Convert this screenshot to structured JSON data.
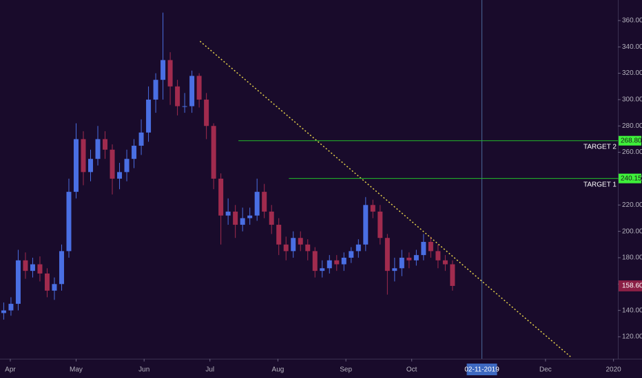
{
  "chart_data": {
    "type": "candlestick",
    "up_color": "#4a6fe3",
    "down_color": "#a12b4e",
    "x": [
      -3,
      0.3,
      3.6,
      6.9,
      10.2,
      13.5,
      16.8,
      20.1,
      23.4,
      26.7,
      30,
      33.3,
      36.6,
      39.9,
      43.2,
      46.5,
      49.8,
      53.1,
      56.4,
      59.7,
      63,
      66.3,
      69.6,
      72.9,
      76.2,
      79.5,
      82.8,
      86.1,
      89.4,
      92.7,
      96,
      99.3,
      102.6,
      105.9,
      109.2,
      112.5,
      115.8,
      119.1,
      122.4,
      125.7,
      129,
      132.3,
      135.6,
      138.9,
      142.2,
      145.5,
      148.8,
      152.1,
      155.4,
      158.7,
      162,
      165.3,
      168.6,
      171.9,
      175.2,
      178.5,
      181.8,
      185.1,
      188.4,
      191.7,
      195,
      198.3,
      201.6
    ],
    "open": [
      138,
      140,
      145,
      178,
      170,
      175,
      168,
      155,
      160,
      185,
      230,
      270,
      245,
      255,
      270,
      262,
      240,
      245,
      255,
      265,
      275,
      300,
      315,
      330,
      310,
      295,
      295,
      318,
      300,
      280,
      240,
      212,
      215,
      205,
      210,
      212,
      230,
      215,
      205,
      190,
      185,
      195,
      190,
      185,
      170,
      172,
      178,
      175,
      180,
      185,
      190,
      220,
      215,
      195,
      170,
      172,
      180,
      178,
      182,
      192,
      185,
      178,
      175
    ],
    "high": [
      146,
      150,
      186,
      184,
      180,
      181,
      172,
      165,
      190,
      240,
      282,
      276,
      262,
      280,
      276,
      266,
      252,
      262,
      270,
      285,
      310,
      320,
      366,
      336,
      315,
      305,
      322,
      320,
      305,
      282,
      244,
      225,
      220,
      218,
      218,
      240,
      236,
      220,
      210,
      196,
      200,
      200,
      194,
      188,
      178,
      182,
      182,
      184,
      188,
      194,
      226,
      224,
      220,
      198,
      180,
      186,
      184,
      186,
      198,
      196,
      190,
      182,
      178
    ],
    "low": [
      133,
      136,
      140,
      164,
      165,
      162,
      150,
      148,
      155,
      180,
      225,
      235,
      238,
      250,
      255,
      228,
      232,
      238,
      248,
      258,
      268,
      290,
      300,
      296,
      288,
      290,
      290,
      294,
      270,
      232,
      190,
      205,
      195,
      200,
      205,
      208,
      210,
      198,
      182,
      178,
      180,
      185,
      178,
      165,
      165,
      168,
      170,
      170,
      176,
      180,
      185,
      210,
      190,
      152,
      162,
      166,
      172,
      174,
      178,
      180,
      172,
      170,
      155
    ],
    "close": [
      140,
      145,
      178,
      170,
      175,
      168,
      155,
      160,
      185,
      230,
      270,
      245,
      255,
      270,
      262,
      240,
      245,
      255,
      265,
      275,
      300,
      315,
      330,
      310,
      295,
      295,
      318,
      300,
      280,
      240,
      212,
      215,
      205,
      210,
      212,
      230,
      215,
      205,
      190,
      185,
      195,
      190,
      185,
      170,
      172,
      178,
      175,
      180,
      185,
      190,
      220,
      215,
      195,
      170,
      172,
      180,
      178,
      182,
      192,
      185,
      178,
      175,
      158.6
    ],
    "xlim": [
      -4.7,
      277
    ],
    "xticks": [
      {
        "value": 0,
        "label": "Apr"
      },
      {
        "value": 30,
        "label": "May"
      },
      {
        "value": 61,
        "label": "Jun"
      },
      {
        "value": 91,
        "label": "Jul"
      },
      {
        "value": 122,
        "label": "Aug"
      },
      {
        "value": 153,
        "label": "Sep"
      },
      {
        "value": 183,
        "label": "Oct"
      },
      {
        "value": 244,
        "label": "Dec"
      },
      {
        "value": 275,
        "label": "2020"
      }
    ],
    "ylim": [
      103.3,
      375.6
    ],
    "yticks": [
      {
        "value": 120,
        "label": "120.00"
      },
      {
        "value": 140,
        "label": "140.00"
      },
      {
        "value": 160,
        "label": "160.00"
      },
      {
        "value": 180,
        "label": "180.00"
      },
      {
        "value": 200,
        "label": "200.00"
      },
      {
        "value": 220,
        "label": "220.00"
      },
      {
        "value": 240,
        "label": "240.00"
      },
      {
        "value": 260,
        "label": "260.00"
      },
      {
        "value": 280,
        "label": "280.00"
      },
      {
        "value": 300,
        "label": "300.00"
      },
      {
        "value": 320,
        "label": "320.00"
      },
      {
        "value": 340,
        "label": "340.00"
      },
      {
        "value": 360,
        "label": "360.00"
      }
    ],
    "targets": [
      {
        "name": "TARGET 2",
        "value": 268.8,
        "label": "268.80",
        "start": 104
      },
      {
        "name": "TARGET 1",
        "value": 240.15,
        "label": "240.15",
        "start": 127
      }
    ],
    "trendline": {
      "x": [
        86.5,
        256
      ],
      "y": [
        344.3,
        104
      ]
    },
    "last_price": {
      "value": 158.6,
      "label": "158.60"
    },
    "crosshair": {
      "x": 215,
      "label": "02-11-2019"
    }
  }
}
